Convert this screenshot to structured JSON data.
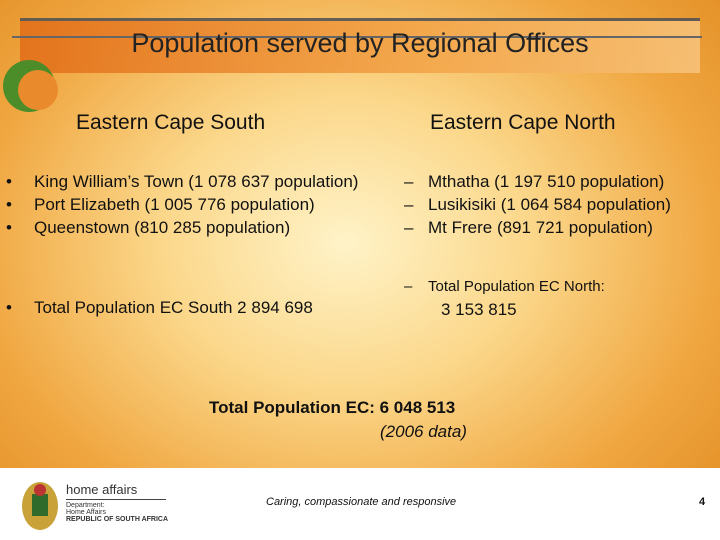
{
  "slide": {
    "title": "Population served by Regional Offices",
    "left": {
      "heading": "Eastern Cape South",
      "items": [
        "King William’s Town (1 078 637 population)",
        "Port Elizabeth (1 005 776 population)",
        "Queenstown (810 285 population)"
      ],
      "total": "Total Population EC South 2 894 698"
    },
    "right": {
      "heading": "Eastern Cape North",
      "items": [
        "Mthatha (1 197 510 population)",
        "Lusikisiki (1 064 584 population)",
        "Mt Frere (891 721 population)"
      ],
      "total_label": "Total Population EC North:",
      "total_value": "3 153 815"
    },
    "grand_total": "Total Population EC: 6 048 513",
    "note": "(2006 data)"
  },
  "footer": {
    "logo_name": "home affairs",
    "logo_lines": [
      "Department:",
      "Home Affairs",
      "REPUBLIC OF SOUTH AFRICA"
    ],
    "tagline": "Caring, compassionate and responsive",
    "page_number": 4
  }
}
